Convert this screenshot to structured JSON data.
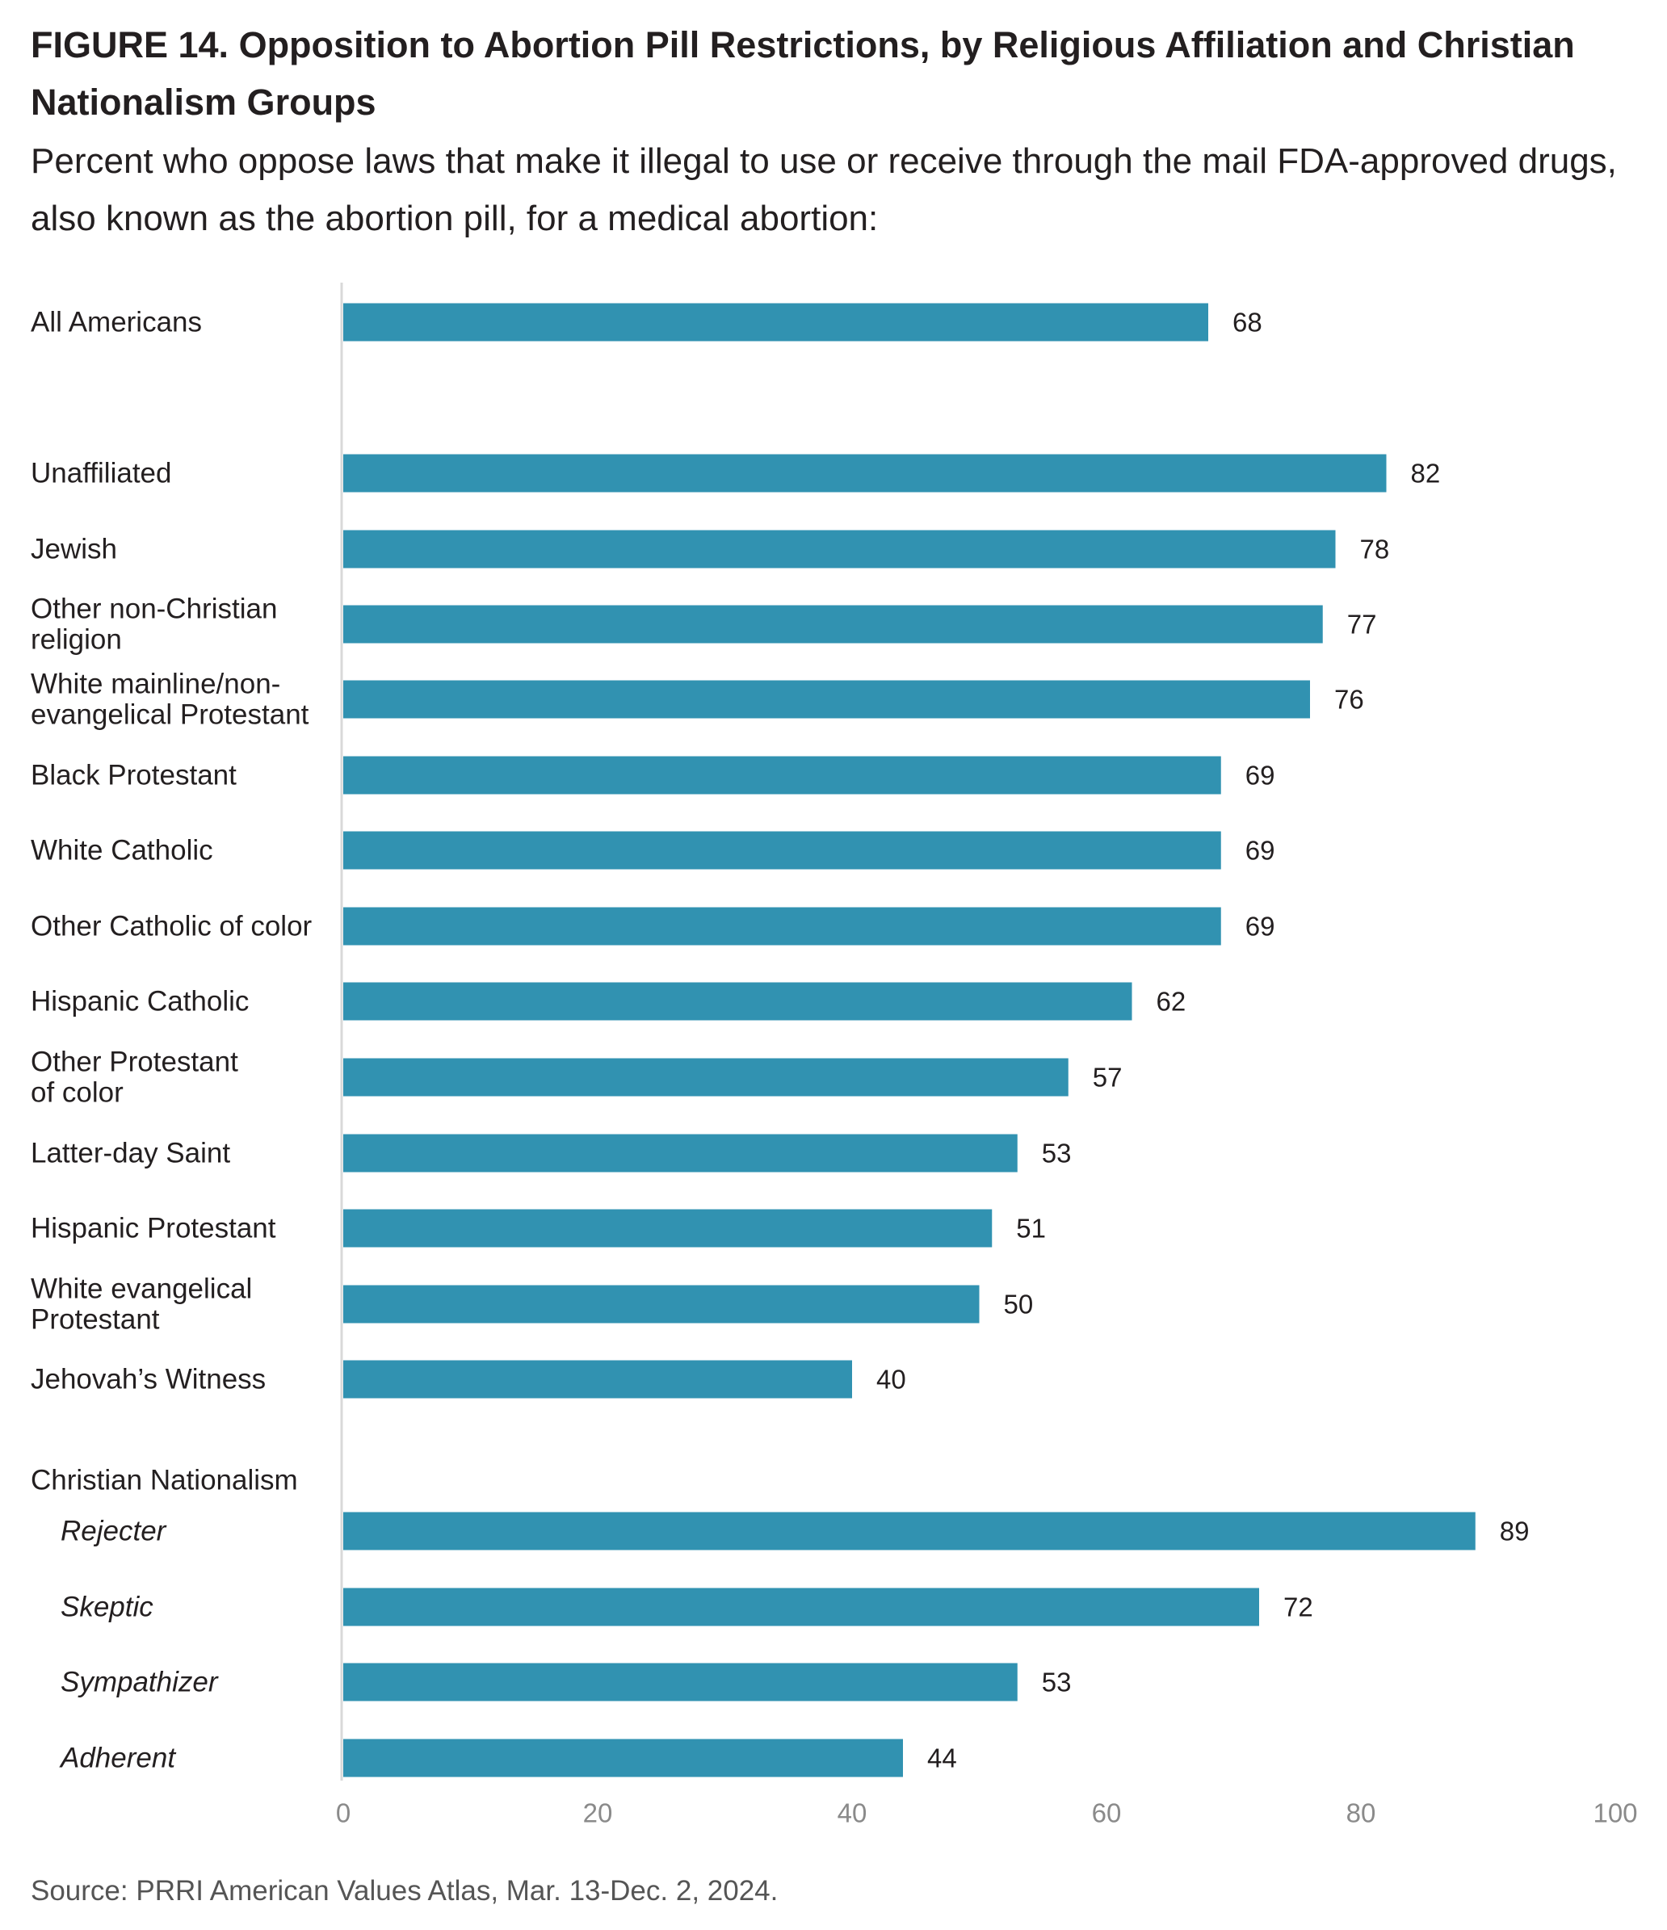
{
  "chart_data": {
    "type": "bar",
    "orientation": "horizontal",
    "title": "FIGURE 14. Opposition to Abortion Pill Restrictions, by Religious Affiliation and Christian Nationalism Groups",
    "subtitle": "Percent who oppose laws that make it illegal to use or receive through the mail FDA-approved drugs, also known as the abortion pill, for a medical abortion:",
    "source": "Source: PRRI American Values Atlas, Mar. 13-Dec. 2, 2024.",
    "group_headers": [
      "Christian Nationalism"
    ],
    "categories": [
      {
        "label": [
          "All Americans"
        ],
        "value": 68,
        "italic": false
      },
      {
        "label": [
          "Unaffiliated"
        ],
        "value": 82,
        "italic": false
      },
      {
        "label": [
          "Jewish"
        ],
        "value": 78,
        "italic": false
      },
      {
        "label": [
          "Other non-Christian",
          "religion"
        ],
        "value": 77,
        "italic": false
      },
      {
        "label": [
          "White mainline/non-",
          "evangelical Protestant"
        ],
        "value": 76,
        "italic": false
      },
      {
        "label": [
          "Black Protestant"
        ],
        "value": 69,
        "italic": false
      },
      {
        "label": [
          "White Catholic"
        ],
        "value": 69,
        "italic": false
      },
      {
        "label": [
          "Other Catholic of color"
        ],
        "value": 69,
        "italic": false
      },
      {
        "label": [
          "Hispanic Catholic"
        ],
        "value": 62,
        "italic": false
      },
      {
        "label": [
          "Other Protestant",
          "of color"
        ],
        "value": 57,
        "italic": false
      },
      {
        "label": [
          "Latter-day Saint"
        ],
        "value": 53,
        "italic": false
      },
      {
        "label": [
          "Hispanic Protestant"
        ],
        "value": 51,
        "italic": false
      },
      {
        "label": [
          "White evangelical",
          "Protestant"
        ],
        "value": 50,
        "italic": false
      },
      {
        "label": [
          "Jehovah’s Witness"
        ],
        "value": 40,
        "italic": false
      },
      {
        "label": [
          "Rejecter"
        ],
        "value": 89,
        "italic": true
      },
      {
        "label": [
          "Skeptic"
        ],
        "value": 72,
        "italic": true
      },
      {
        "label": [
          "Sympathizer"
        ],
        "value": 53,
        "italic": true
      },
      {
        "label": [
          "Adherent"
        ],
        "value": 44,
        "italic": true
      }
    ],
    "xlim": [
      0,
      100
    ],
    "xticks": [
      0,
      20,
      40,
      60,
      80,
      100
    ],
    "grid": false,
    "legend": "none",
    "bar_color": "#3192b1",
    "axis_color": "#d9d9d9"
  }
}
